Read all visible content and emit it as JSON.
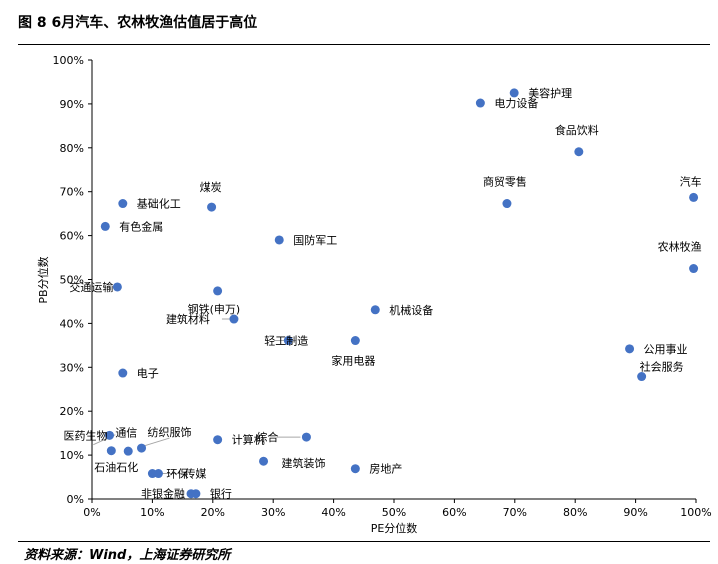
{
  "figure": {
    "title": "图 8 6月汽车、农林牧渔估值居于高位",
    "source": "资料来源：Wind，上海证券研究所"
  },
  "colors": {
    "point": "#4472C4",
    "axis": "#000000",
    "leader": "#A6A6A6"
  },
  "chart_data": {
    "type": "scatter",
    "xlabel": "PE分位数",
    "ylabel": "PB分位数",
    "xlim": [
      0,
      1
    ],
    "ylim": [
      0,
      1
    ],
    "grid": false,
    "x_ticks": [
      0,
      0.1,
      0.2,
      0.3,
      0.4,
      0.5,
      0.6,
      0.7,
      0.8,
      0.9,
      1.0
    ],
    "x_tick_labels": [
      "0%",
      "10%",
      "20%",
      "30%",
      "40%",
      "50%",
      "60%",
      "70%",
      "80%",
      "90%",
      "100%"
    ],
    "y_ticks": [
      0,
      0.1,
      0.2,
      0.3,
      0.4,
      0.5,
      0.6,
      0.7,
      0.8,
      0.9,
      1.0
    ],
    "y_tick_labels": [
      "0%",
      "10%",
      "20%",
      "30%",
      "40%",
      "50%",
      "60%",
      "70%",
      "80%",
      "90%",
      "100%"
    ],
    "points": [
      {
        "label": "美容护理",
        "x": 0.699,
        "y": 0.925
      },
      {
        "label": "电力设备",
        "x": 0.643,
        "y": 0.902
      },
      {
        "label": "食品饮料",
        "x": 0.806,
        "y": 0.791
      },
      {
        "label": "汽车",
        "x": 0.996,
        "y": 0.687
      },
      {
        "label": "商贸零售",
        "x": 0.687,
        "y": 0.673
      },
      {
        "label": "煤炭",
        "x": 0.198,
        "y": 0.665
      },
      {
        "label": "基础化工",
        "x": 0.051,
        "y": 0.673
      },
      {
        "label": "有色金属",
        "x": 0.022,
        "y": 0.621
      },
      {
        "label": "国防军工",
        "x": 0.31,
        "y": 0.59
      },
      {
        "label": "农林牧渔",
        "x": 0.996,
        "y": 0.525
      },
      {
        "label": "交通运输",
        "x": 0.042,
        "y": 0.483
      },
      {
        "label": "钢铁(申万)",
        "x": 0.208,
        "y": 0.474
      },
      {
        "label": "机械设备",
        "x": 0.469,
        "y": 0.431
      },
      {
        "label": "建筑材料",
        "x": 0.235,
        "y": 0.41
      },
      {
        "label": "轻工制造",
        "x": 0.325,
        "y": 0.361
      },
      {
        "label": "家用电器",
        "x": 0.436,
        "y": 0.361
      },
      {
        "label": "公用事业",
        "x": 0.89,
        "y": 0.342
      },
      {
        "label": "社会服务",
        "x": 0.91,
        "y": 0.279
      },
      {
        "label": "电子",
        "x": 0.051,
        "y": 0.287
      },
      {
        "label": "医药生物",
        "x": 0.029,
        "y": 0.145
      },
      {
        "label": "通信",
        "x": 0.032,
        "y": 0.11
      },
      {
        "label": "纺织服饰",
        "x": 0.082,
        "y": 0.116
      },
      {
        "label": "石油石化",
        "x": 0.06,
        "y": 0.109
      },
      {
        "label": "计算机",
        "x": 0.208,
        "y": 0.135
      },
      {
        "label": "综合",
        "x": 0.355,
        "y": 0.141
      },
      {
        "label": "建筑装饰",
        "x": 0.284,
        "y": 0.086
      },
      {
        "label": "房地产",
        "x": 0.436,
        "y": 0.069
      },
      {
        "label": "环保",
        "x": 0.1,
        "y": 0.058
      },
      {
        "label": "传媒",
        "x": 0.11,
        "y": 0.058
      },
      {
        "label": "非银金融",
        "x": 0.164,
        "y": 0.012
      },
      {
        "label": "银行",
        "x": 0.172,
        "y": 0.012
      }
    ]
  }
}
